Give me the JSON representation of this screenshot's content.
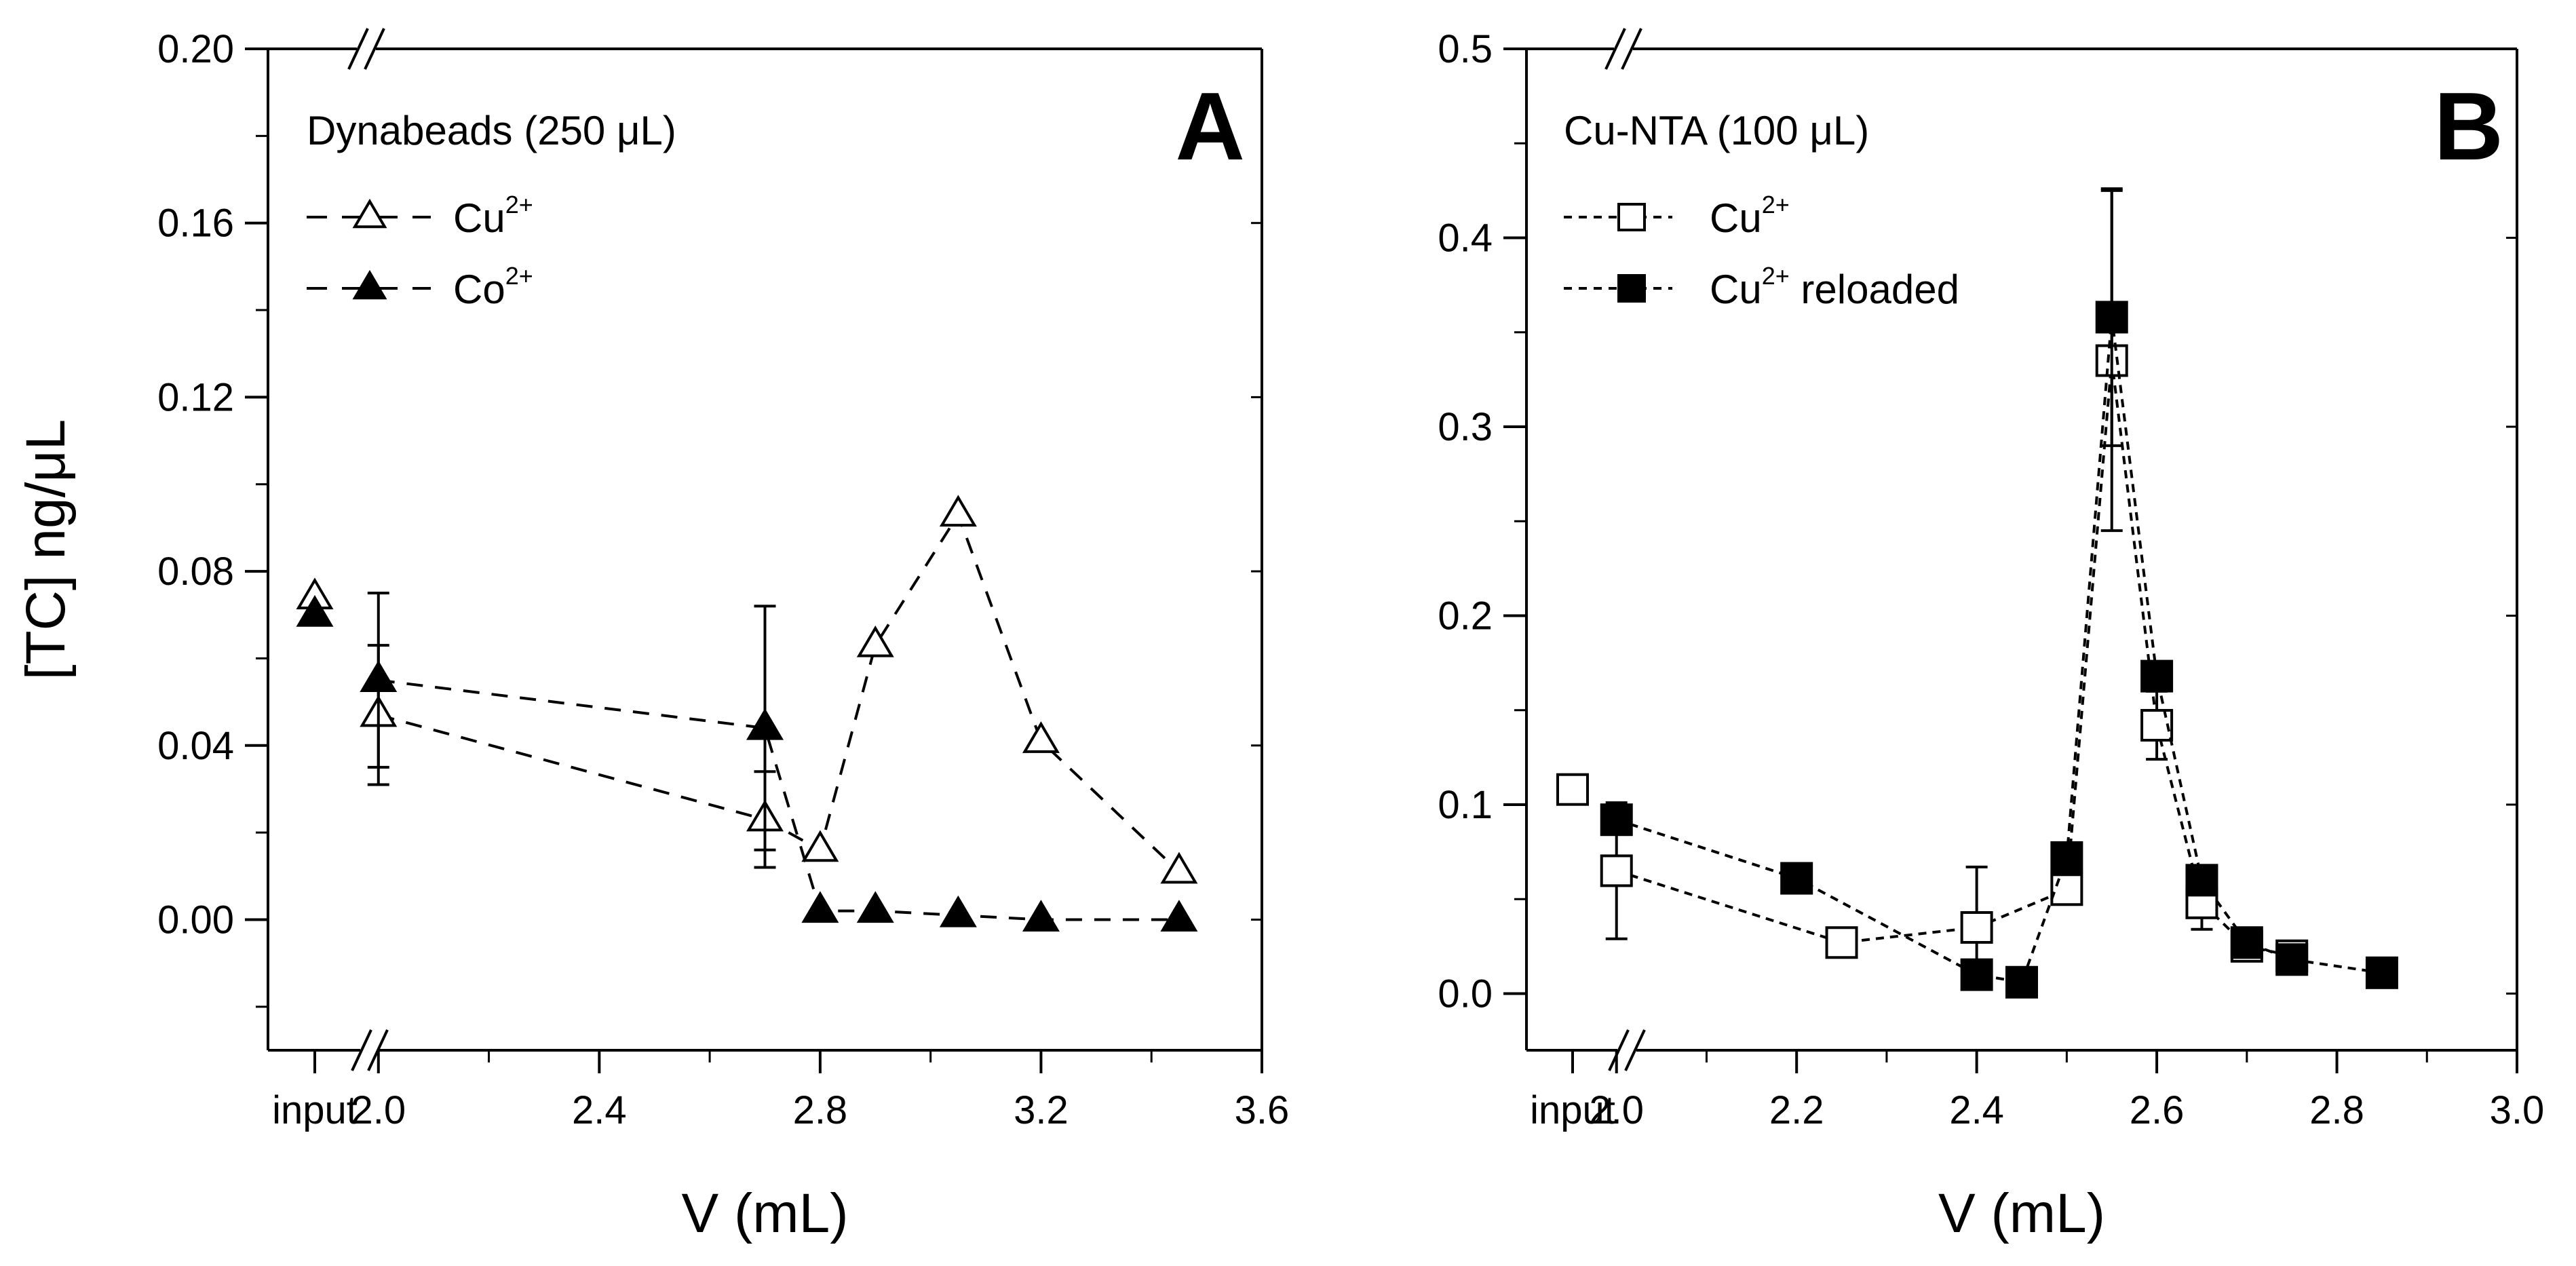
{
  "chart_data": [
    {
      "type": "scatter",
      "panel_letter": "A",
      "title": "",
      "xlabel": "V (mL)",
      "ylabel": "[TC] ng/μL",
      "xlim": [
        1.8,
        3.6
      ],
      "ylim": [
        -0.03,
        0.2
      ],
      "xticks": [
        "input",
        "2.0",
        "2.4",
        "2.8",
        "3.2",
        "3.6"
      ],
      "yticks": [
        "0.00",
        "0.04",
        "0.08",
        "0.12",
        "0.16",
        "0.20"
      ],
      "x_axis_break": true,
      "legend_title": "Dynabeads (250 μL)",
      "legend_position": "top-left",
      "series": [
        {
          "name": "Cu2+",
          "label": "Cu",
          "superscript": "2+",
          "marker": "triangle-open",
          "input_value": 0.074,
          "x": [
            2.0,
            2.7,
            2.8,
            2.9,
            3.05,
            3.2,
            3.45
          ],
          "y": [
            0.047,
            0.023,
            0.016,
            0.063,
            0.093,
            0.041,
            0.011
          ],
          "error": [
            0.016,
            0.011,
            0,
            0,
            0,
            0,
            0
          ]
        },
        {
          "name": "Co2+",
          "label": "Co",
          "superscript": "2+",
          "marker": "triangle-filled",
          "input_value": 0.07,
          "x": [
            2.0,
            2.7,
            2.8,
            2.9,
            3.05,
            3.2,
            3.45
          ],
          "y": [
            0.055,
            0.044,
            0.002,
            0.002,
            0.001,
            0.0,
            0.0
          ],
          "error": [
            0.02,
            0.028,
            0,
            0,
            0,
            0,
            0
          ]
        }
      ]
    },
    {
      "type": "scatter",
      "panel_letter": "B",
      "title": "",
      "xlabel": "V (mL)",
      "ylabel": "",
      "xlim": [
        1.9,
        3.0
      ],
      "ylim": [
        -0.03,
        0.5
      ],
      "xticks": [
        "input",
        "2.0",
        "2.2",
        "2.4",
        "2.6",
        "2.8",
        "3.0"
      ],
      "yticks": [
        "0.0",
        "0.1",
        "0.2",
        "0.3",
        "0.4",
        "0.5"
      ],
      "x_axis_break": true,
      "legend_title": "Cu-NTA (100 μL)",
      "legend_position": "top-left",
      "series": [
        {
          "name": "Cu2+",
          "label": "Cu",
          "superscript": "2+",
          "marker": "square-open",
          "input_value": 0.108,
          "x": [
            2.0,
            2.25,
            2.4,
            2.5,
            2.55,
            2.6,
            2.65,
            2.7,
            2.75
          ],
          "y": [
            0.065,
            0.027,
            0.035,
            0.055,
            0.335,
            0.142,
            0.048,
            0.025,
            0.02
          ],
          "error": [
            0.036,
            0,
            0.032,
            0,
            0.09,
            0.018,
            0.014,
            0,
            0
          ]
        },
        {
          "name": "Cu2+ reloaded",
          "label": "Cu",
          "superscript": "2+",
          "suffix": " reloaded",
          "marker": "square-filled",
          "x": [
            2.0,
            2.2,
            2.4,
            2.45,
            2.5,
            2.55,
            2.6,
            2.65,
            2.7,
            2.75,
            2.85
          ],
          "y": [
            0.092,
            0.061,
            0.01,
            0.006,
            0.072,
            0.358,
            0.168,
            0.06,
            0.027,
            0.018,
            0.011
          ],
          "error": [
            0,
            0,
            0,
            0,
            0,
            0.068,
            0,
            0,
            0,
            0,
            0
          ]
        }
      ]
    }
  ]
}
